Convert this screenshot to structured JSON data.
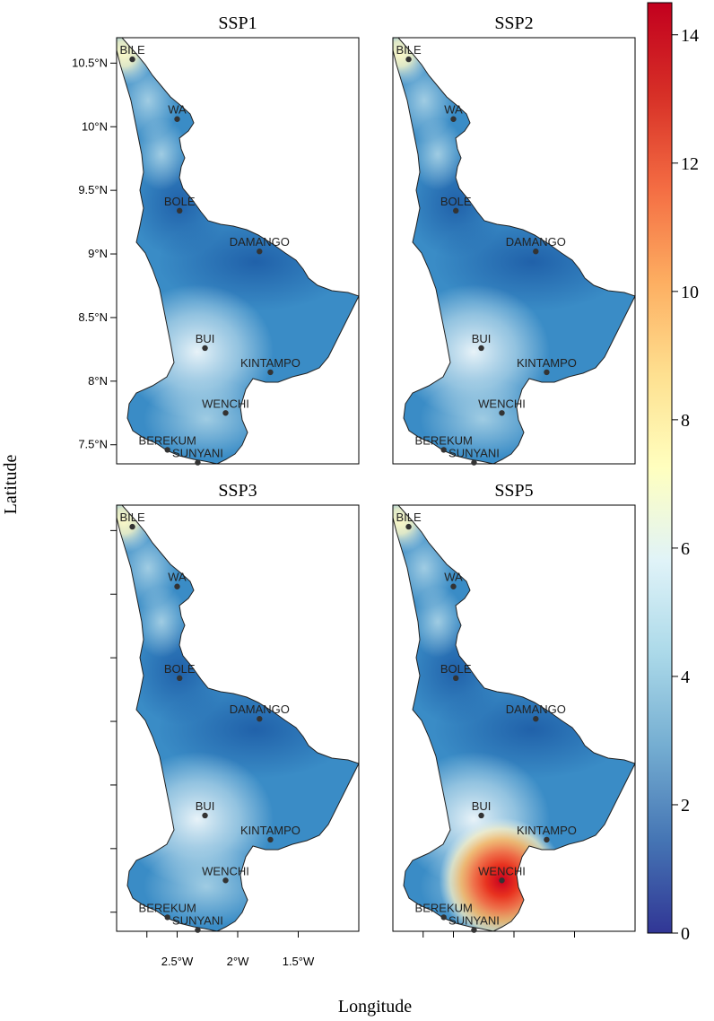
{
  "figure": {
    "xlabel": "Longitude",
    "ylabel": "Latitude"
  },
  "panels": [
    {
      "title": "SSP1",
      "hotspot": null
    },
    {
      "title": "SSP2",
      "hotspot": null
    },
    {
      "title": "SSP3",
      "hotspot": null
    },
    {
      "title": "SSP5",
      "hotspot": {
        "near": "WENCHI",
        "value": 14
      }
    }
  ],
  "axes": {
    "y_ticks": [
      {
        "lat": 10.5,
        "label": "10.5°N"
      },
      {
        "lat": 10.0,
        "label": "10°N"
      },
      {
        "lat": 9.5,
        "label": "9.5°N"
      },
      {
        "lat": 9.0,
        "label": "9°N"
      },
      {
        "lat": 8.5,
        "label": "8.5°N"
      },
      {
        "lat": 8.0,
        "label": "8°N"
      },
      {
        "lat": 7.5,
        "label": "7.5°N"
      }
    ],
    "x_ticks": [
      {
        "lon": -2.5,
        "label": "2.5°W"
      },
      {
        "lon": -2.0,
        "label": "2°W"
      },
      {
        "lon": -1.5,
        "label": "1.5°W"
      }
    ],
    "lon_range": [
      -3.0,
      -1.0
    ],
    "lat_range": [
      7.35,
      10.7
    ]
  },
  "places": [
    {
      "name": "BILE",
      "lon": -2.87,
      "lat": 10.53
    },
    {
      "name": "WA",
      "lon": -2.5,
      "lat": 10.06
    },
    {
      "name": "BOLE",
      "lon": -2.48,
      "lat": 9.34
    },
    {
      "name": "DAMANGO",
      "lon": -1.82,
      "lat": 9.02
    },
    {
      "name": "BUI",
      "lon": -2.27,
      "lat": 8.26
    },
    {
      "name": "KINTAMPO",
      "lon": -1.73,
      "lat": 8.07
    },
    {
      "name": "WENCHI",
      "lon": -2.1,
      "lat": 7.75
    },
    {
      "name": "BEREKUM",
      "lon": -2.58,
      "lat": 7.46
    },
    {
      "name": "SUNYANI",
      "lon": -2.33,
      "lat": 7.36
    }
  ],
  "colorbar": {
    "min": 0,
    "max": 14.5,
    "ticks": [
      0,
      2,
      4,
      6,
      8,
      10,
      12,
      14
    ],
    "colormap": [
      "#313695",
      "#4575b4",
      "#74add1",
      "#abd9e9",
      "#e0f3f8",
      "#ffffbf",
      "#fee090",
      "#fdae61",
      "#f46d43",
      "#d73027",
      "#c2001e"
    ]
  }
}
